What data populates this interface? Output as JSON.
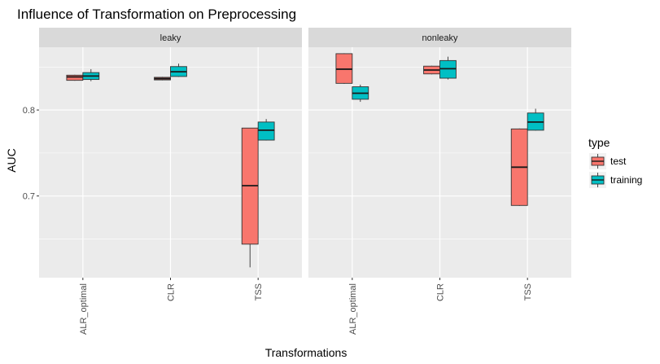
{
  "chart_data": {
    "type": "boxplot",
    "title": "Influence of Transformation on Preprocessing",
    "xlabel": "Transformations",
    "ylabel": "AUC",
    "ylim": [
      0.605,
      0.873
    ],
    "y_ticks": [
      0.7,
      0.8
    ],
    "y_tick_labels": [
      "0.7",
      "0.8"
    ],
    "y_minor_ticks": [
      0.65,
      0.75,
      0.85
    ],
    "categories": [
      "ALR_optimal",
      "CLR",
      "TSS"
    ],
    "legend": {
      "title": "type",
      "entries": [
        {
          "name": "test",
          "color": "#F8766D"
        },
        {
          "name": "training",
          "color": "#00BFC4"
        }
      ]
    },
    "colors": {
      "panel_bg": "#EBEBEB",
      "strip_bg": "#D9D9D9",
      "grid": "#FFFFFF",
      "box_line": "#333333",
      "test": "#F8766D",
      "training": "#00BFC4"
    },
    "facets": [
      {
        "name": "leaky",
        "series": [
          {
            "name": "test",
            "boxes": [
              {
                "category": "ALR_optimal",
                "min": 0.834,
                "q1": 0.8345,
                "median": 0.8385,
                "q3": 0.8405,
                "max": 0.841
              },
              {
                "category": "CLR",
                "min": 0.8345,
                "q1": 0.835,
                "median": 0.8365,
                "q3": 0.838,
                "max": 0.8385
              },
              {
                "category": "TSS",
                "min": 0.617,
                "q1": 0.644,
                "median": 0.712,
                "q3": 0.779,
                "max": 0.779
              }
            ]
          },
          {
            "name": "training",
            "boxes": [
              {
                "category": "ALR_optimal",
                "min": 0.8335,
                "q1": 0.8355,
                "median": 0.8395,
                "q3": 0.8435,
                "max": 0.8475
              },
              {
                "category": "CLR",
                "min": 0.8385,
                "q1": 0.839,
                "median": 0.8445,
                "q3": 0.8505,
                "max": 0.854
              },
              {
                "category": "TSS",
                "min": 0.7645,
                "q1": 0.765,
                "median": 0.7765,
                "q3": 0.786,
                "max": 0.7895
              }
            ]
          }
        ]
      },
      {
        "name": "nonleaky",
        "series": [
          {
            "name": "test",
            "boxes": [
              {
                "category": "ALR_optimal",
                "min": 0.8305,
                "q1": 0.831,
                "median": 0.8475,
                "q3": 0.8655,
                "max": 0.866
              },
              {
                "category": "CLR",
                "min": 0.8415,
                "q1": 0.842,
                "median": 0.8465,
                "q3": 0.851,
                "max": 0.8515
              },
              {
                "category": "TSS",
                "min": 0.6885,
                "q1": 0.689,
                "median": 0.7335,
                "q3": 0.778,
                "max": 0.7785
              }
            ]
          },
          {
            "name": "training",
            "boxes": [
              {
                "category": "ALR_optimal",
                "min": 0.8095,
                "q1": 0.8125,
                "median": 0.8195,
                "q3": 0.827,
                "max": 0.8295
              },
              {
                "category": "CLR",
                "min": 0.8355,
                "q1": 0.837,
                "median": 0.848,
                "q3": 0.8575,
                "max": 0.862
              },
              {
                "category": "TSS",
                "min": 0.776,
                "q1": 0.7765,
                "median": 0.786,
                "q3": 0.7965,
                "max": 0.8015
              }
            ]
          }
        ]
      }
    ]
  }
}
